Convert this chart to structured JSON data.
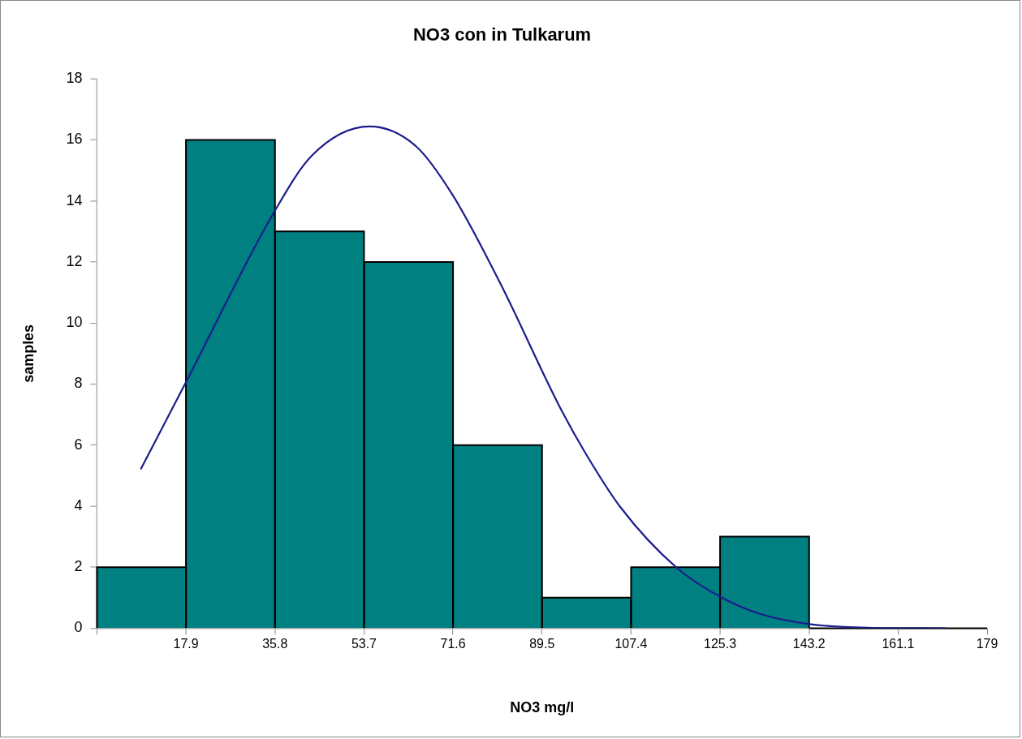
{
  "chart_data": {
    "type": "histogram",
    "title": "NO3 con in Tulkarum",
    "xlabel": "NO3 mg/l",
    "ylabel": "samples",
    "bins": [
      0,
      17.9,
      35.8,
      53.7,
      71.6,
      89.5,
      107.4,
      125.3,
      143.2,
      161.1,
      179
    ],
    "values": [
      2,
      16,
      13,
      12,
      6,
      1,
      2,
      3,
      0,
      0
    ],
    "color": "#008080",
    "series": [
      {
        "type": "line",
        "color": "#1c1c8c",
        "x": [
          8.8,
          17.7,
          35.5,
          43.3,
          54.8,
          64.1,
          71.5,
          81.1,
          93.0,
          98.0,
          105.2,
          116.6,
          125.8,
          133.6,
          143.6,
          155.0,
          170.7
        ],
        "values": [
          5.21,
          8.0,
          13.6,
          15.5,
          16.44,
          15.8,
          14.2,
          11.3,
          7.27,
          5.8,
          3.98,
          1.98,
          0.99,
          0.46,
          0.13,
          0.02,
          0
        ]
      }
    ],
    "xlim": [
      0,
      179
    ],
    "xticks": [
      {
        "value": 0,
        "label": null
      },
      17.9,
      35.8,
      53.7,
      71.6,
      89.5,
      107.4,
      125.3,
      143.2,
      161.1,
      179
    ],
    "ylim": [
      0,
      18
    ],
    "yticks": [
      0,
      2,
      4,
      6,
      8,
      10,
      12,
      14,
      16,
      18
    ],
    "grid": false,
    "legend": false,
    "marker": "none",
    "line_style": "solid"
  }
}
